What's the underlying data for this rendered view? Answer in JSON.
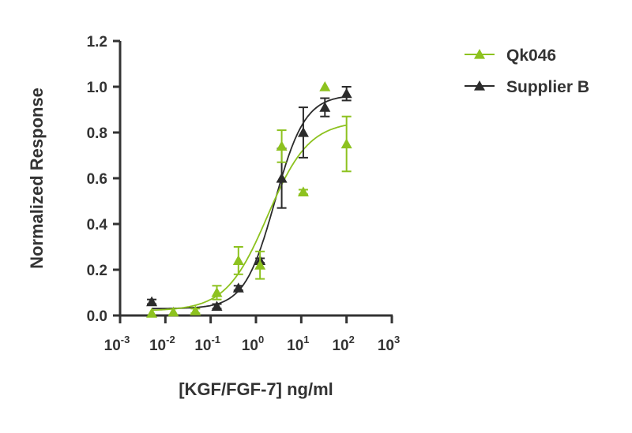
{
  "chart_data": {
    "type": "scatter",
    "title": "",
    "xlabel": "[KGF/FGF-7] ng/ml",
    "ylabel": "Normalized Response",
    "xscale": "log",
    "xlim": [
      0.001,
      1000
    ],
    "ylim": [
      0,
      1.2
    ],
    "yticks": [
      "0.0",
      "0.2",
      "0.4",
      "0.6",
      "0.8",
      "1.0",
      "1.2"
    ],
    "xticks": [
      {
        "base": "10",
        "exp": "-3"
      },
      {
        "base": "10",
        "exp": "-2"
      },
      {
        "base": "10",
        "exp": "-1"
      },
      {
        "base": "10",
        "exp": "0"
      },
      {
        "base": "10",
        "exp": "1"
      },
      {
        "base": "10",
        "exp": "2"
      },
      {
        "base": "10",
        "exp": "3"
      }
    ],
    "legend_position": "top-right",
    "grid": false,
    "series": [
      {
        "name": "Qk046",
        "color": "#8dc21f",
        "x": [
          0.005,
          0.015,
          0.046,
          0.137,
          0.41,
          1.23,
          3.7,
          11.1,
          33.3,
          100
        ],
        "y": [
          0.01,
          0.015,
          0.02,
          0.1,
          0.24,
          0.22,
          0.74,
          0.54,
          1.0,
          0.75
        ],
        "err": [
          0,
          0,
          0.01,
          0.03,
          0.06,
          0.06,
          0.07,
          0.01,
          0,
          0.12
        ],
        "fit": {
          "bottom": 0.02,
          "top": 0.85,
          "ec50": 1.8,
          "hill": 0.95
        }
      },
      {
        "name": "Supplier B",
        "color": "#2b2b2b",
        "x": [
          0.005,
          0.137,
          0.41,
          1.23,
          3.7,
          11.1,
          33.3,
          100
        ],
        "y": [
          0.06,
          0.04,
          0.12,
          0.24,
          0.6,
          0.8,
          0.91,
          0.97
        ],
        "err": [
          0.01,
          0.01,
          0.01,
          0.01,
          0.13,
          0.11,
          0.04,
          0.03
        ],
        "fit": {
          "bottom": 0.03,
          "top": 0.965,
          "ec50": 2.6,
          "hill": 1.3
        }
      }
    ]
  }
}
